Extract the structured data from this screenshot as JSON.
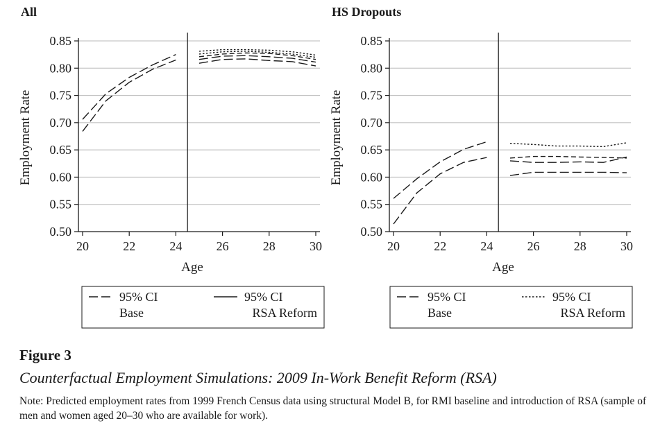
{
  "figure": {
    "label": "Figure 3",
    "title": "Counterfactual Employment Simulations: 2009 In-Work Benefit Reform (RSA)",
    "note": "Note: Predicted employment rates from 1999 French Census data using structural Model B, for RMI baseline and introduction of RSA (sample of men and women aged 20–30 who are available for work)."
  },
  "chart_data": [
    {
      "type": "line",
      "title": "All",
      "xlabel": "Age",
      "ylabel": "Employment Rate",
      "xlim": [
        20,
        30
      ],
      "ylim": [
        0.5,
        0.85
      ],
      "x_ticks": [
        20,
        22,
        24,
        26,
        28,
        30
      ],
      "y_ticks": [
        "0.50",
        "0.55",
        "0.60",
        "0.65",
        "0.70",
        "0.75",
        "0.80",
        "0.85"
      ],
      "grid": "horizontal",
      "reform_line_x": 24.5,
      "legend_position": "bottom",
      "legend": [
        {
          "key": "base",
          "label_lines": [
            "95% CI",
            "Base"
          ],
          "style": "long-dash"
        },
        {
          "key": "rsa",
          "label_lines": [
            "95% CI",
            "RSA Reform"
          ],
          "style": "solid"
        }
      ],
      "series": [
        {
          "group": "base",
          "style": "long-dash",
          "x": [
            20,
            21,
            22,
            23,
            24
          ],
          "y": [
            0.706,
            0.753,
            0.783,
            0.806,
            0.825
          ]
        },
        {
          "group": "base",
          "style": "long-dash",
          "x": [
            20,
            21,
            22,
            23,
            24
          ],
          "y": [
            0.684,
            0.74,
            0.774,
            0.798,
            0.815
          ]
        },
        {
          "group": "base",
          "style": "long-dash",
          "x": [
            25,
            26,
            27,
            28,
            29,
            30
          ],
          "y": [
            0.809,
            0.816,
            0.817,
            0.814,
            0.812,
            0.804
          ]
        },
        {
          "group": "base",
          "style": "long-dash",
          "x": [
            25,
            26,
            27,
            28,
            29,
            30
          ],
          "y": [
            0.816,
            0.822,
            0.823,
            0.821,
            0.818,
            0.811
          ]
        },
        {
          "group": "rsa",
          "style": "dashed",
          "x": [
            25,
            26,
            27,
            28,
            29,
            30
          ],
          "y": [
            0.821,
            0.826,
            0.828,
            0.827,
            0.823,
            0.816
          ]
        },
        {
          "group": "rsa",
          "style": "dotted",
          "x": [
            25,
            26,
            27,
            28,
            29,
            30
          ],
          "y": [
            0.826,
            0.83,
            0.831,
            0.829,
            0.826,
            0.82
          ]
        },
        {
          "group": "rsa",
          "style": "dotted",
          "x": [
            25,
            26,
            27,
            28,
            29,
            30
          ],
          "y": [
            0.831,
            0.834,
            0.834,
            0.833,
            0.83,
            0.824
          ]
        }
      ]
    },
    {
      "type": "line",
      "title": "HS Dropouts",
      "xlabel": "Age",
      "ylabel": "Employment Rate",
      "xlim": [
        20,
        30
      ],
      "ylim": [
        0.5,
        0.85
      ],
      "x_ticks": [
        20,
        22,
        24,
        26,
        28,
        30
      ],
      "y_ticks": [
        "0.50",
        "0.55",
        "0.60",
        "0.65",
        "0.70",
        "0.75",
        "0.80",
        "0.85"
      ],
      "grid": "horizontal",
      "reform_line_x": 24.5,
      "legend_position": "bottom",
      "legend": [
        {
          "key": "base",
          "label_lines": [
            "95% CI",
            "Base"
          ],
          "style": "long-dash"
        },
        {
          "key": "rsa",
          "label_lines": [
            "95% CI",
            "RSA Reform"
          ],
          "style": "dotted"
        }
      ],
      "series": [
        {
          "group": "base",
          "style": "long-dash",
          "x": [
            20,
            21,
            22,
            23,
            24
          ],
          "y": [
            0.561,
            0.597,
            0.628,
            0.651,
            0.665
          ]
        },
        {
          "group": "base",
          "style": "long-dash",
          "x": [
            20,
            21,
            22,
            23,
            24
          ],
          "y": [
            0.514,
            0.571,
            0.606,
            0.627,
            0.636
          ]
        },
        {
          "group": "base",
          "style": "long-dash",
          "x": [
            25,
            26,
            27,
            28,
            29,
            30
          ],
          "y": [
            0.603,
            0.609,
            0.609,
            0.609,
            0.609,
            0.608
          ]
        },
        {
          "group": "base",
          "style": "long-dash",
          "x": [
            25,
            26,
            27,
            28,
            29,
            30
          ],
          "y": [
            0.63,
            0.627,
            0.627,
            0.628,
            0.627,
            0.637
          ]
        },
        {
          "group": "rsa",
          "style": "dashed",
          "x": [
            25,
            26,
            27,
            28,
            29,
            30
          ],
          "y": [
            0.635,
            0.638,
            0.638,
            0.637,
            0.636,
            0.635
          ]
        },
        {
          "group": "rsa",
          "style": "dotted",
          "x": [
            25,
            26,
            27,
            28,
            29,
            30
          ],
          "y": [
            0.662,
            0.66,
            0.657,
            0.657,
            0.656,
            0.663
          ]
        }
      ]
    }
  ]
}
